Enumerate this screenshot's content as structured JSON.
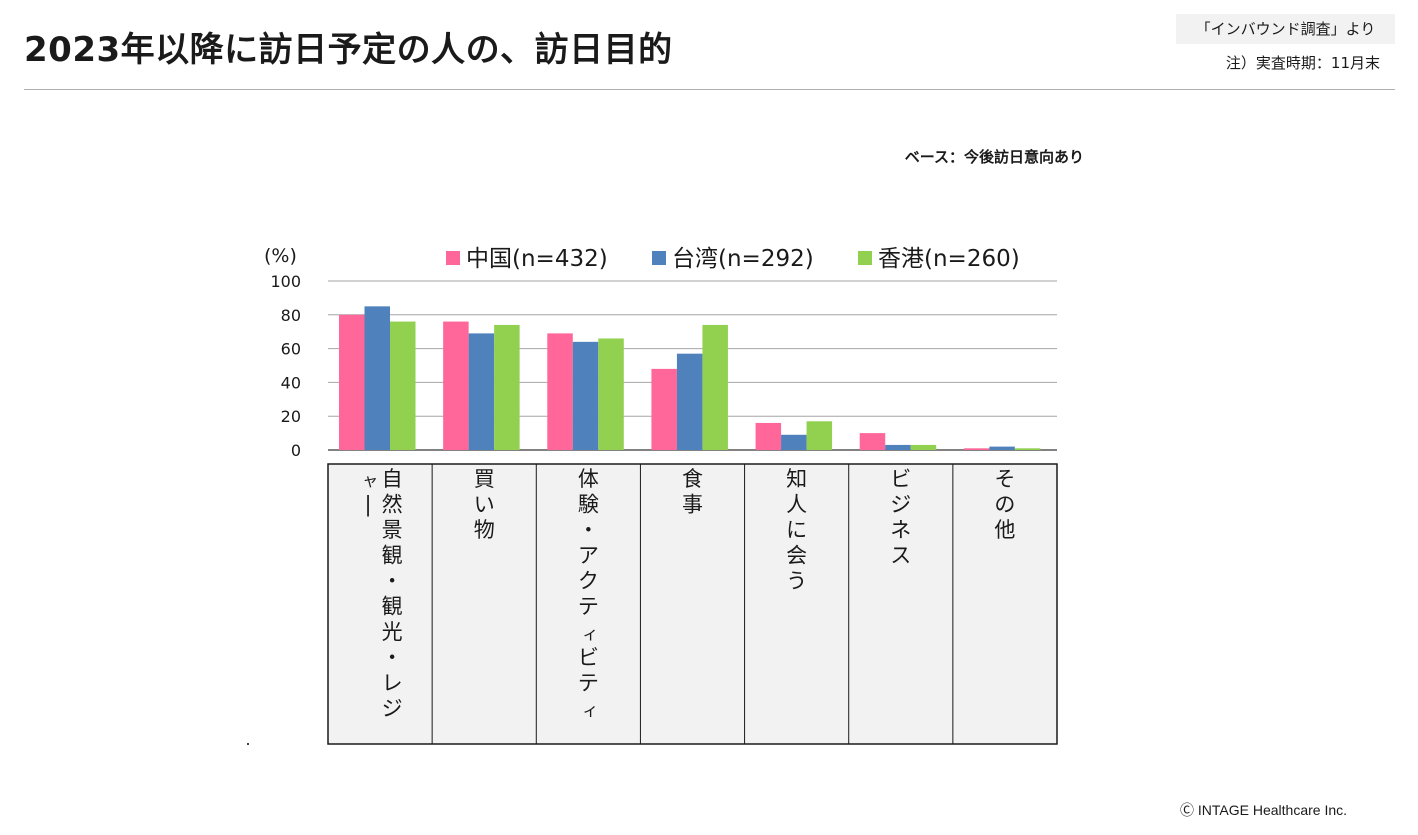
{
  "header": {
    "title": "2023年以降に訪日予定の人の、訪日目的",
    "source": "「インバウンド調査」より",
    "note": "注）実査時期：11月末"
  },
  "base_note": "ベース：今後訪日意向あり",
  "footer": {
    "copyright": "Ⓒ INTAGE Healthcare Inc."
  },
  "chart_data": {
    "type": "bar",
    "title": "",
    "ylabel": "(%)",
    "xlabel": "",
    "ylim": [
      0,
      100
    ],
    "yticks": [
      0,
      20,
      40,
      60,
      80,
      100
    ],
    "grid": true,
    "legend_position": "top",
    "categories": [
      "自然景観・観光・レジャー",
      "買い物",
      "体験・アクティビティ",
      "食事",
      "知人に会う",
      "ビジネス",
      "その他"
    ],
    "series": [
      {
        "name": "中国(n=432)",
        "color": "#ff6699",
        "values": [
          80,
          76,
          69,
          48,
          16,
          10,
          1
        ]
      },
      {
        "name": "台湾(n=292)",
        "color": "#4f81bd",
        "values": [
          85,
          69,
          64,
          57,
          9,
          3,
          2
        ]
      },
      {
        "name": "香港(n=260)",
        "color": "#92d050",
        "values": [
          76,
          74,
          66,
          74,
          17,
          3,
          1
        ]
      }
    ]
  }
}
